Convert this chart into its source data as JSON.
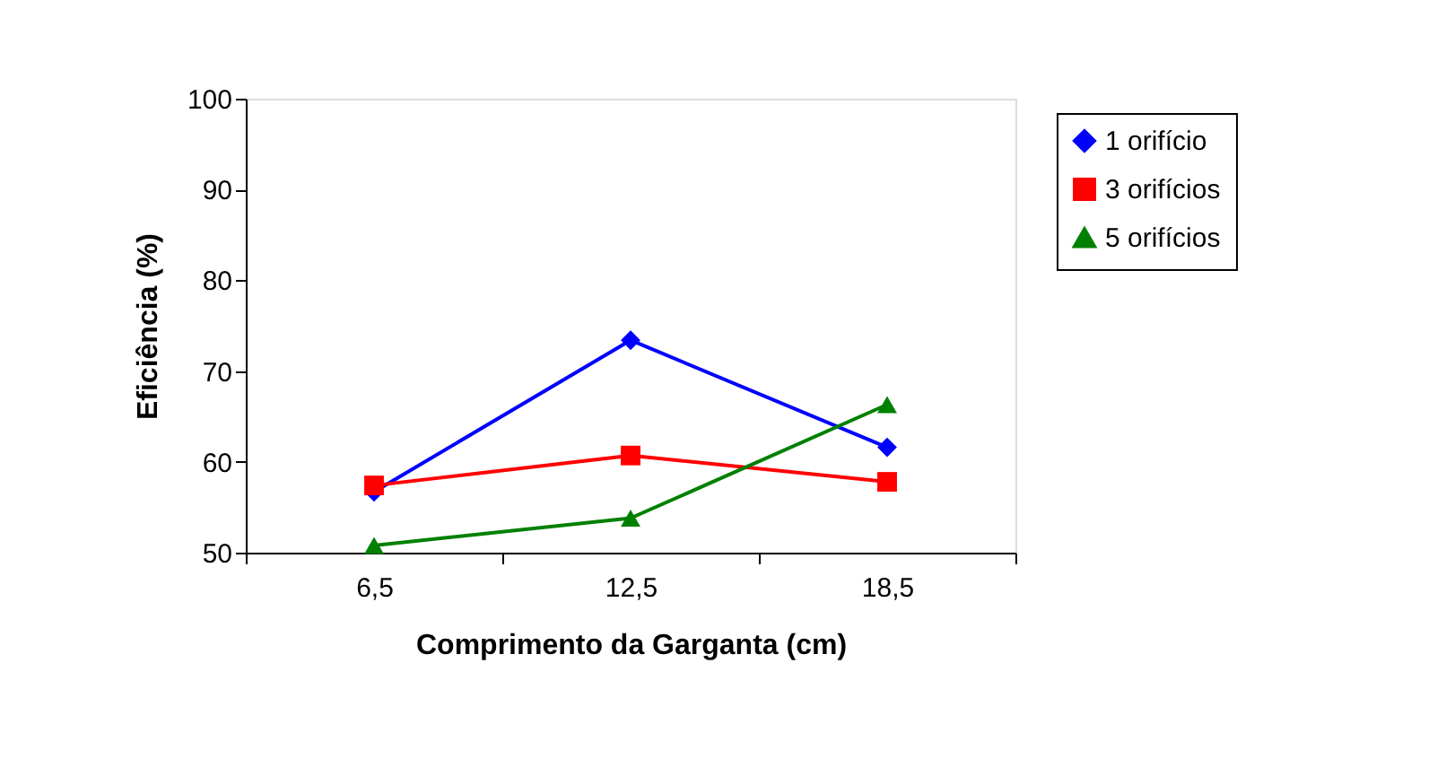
{
  "chart_data": {
    "type": "line",
    "xlabel": "Comprimento da Garganta (cm)",
    "ylabel": "Eficiência (%)",
    "categories": [
      "6,5",
      "12,5",
      "18,5"
    ],
    "series": [
      {
        "name": "1 orifício",
        "color": "#0000ff",
        "marker": "diamond",
        "values": [
          56.7,
          73.4,
          61.6
        ]
      },
      {
        "name": "3 orifícios",
        "color": "#ff0000",
        "marker": "square",
        "values": [
          57.4,
          60.7,
          57.8
        ]
      },
      {
        "name": "5 orifícios",
        "color": "#008000",
        "marker": "triangle",
        "values": [
          50.8,
          53.8,
          66.3
        ]
      }
    ],
    "ylim": [
      50,
      100
    ],
    "yticks": [
      50,
      60,
      70,
      80,
      90,
      100
    ],
    "grid": false,
    "legend": "right",
    "line_style": "solid"
  }
}
